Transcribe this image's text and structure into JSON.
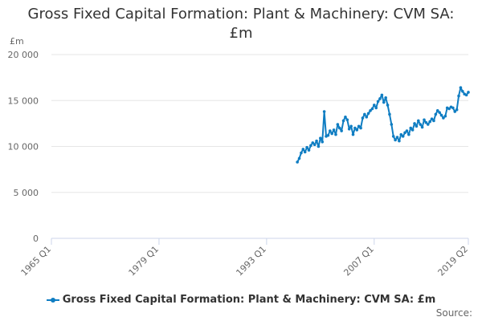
{
  "chart_data": {
    "type": "line",
    "title_line1": "Gross Fixed Capital Formation: Plant & Machinery: CVM SA:",
    "title_line2": "£m",
    "ylabel": "£m",
    "ylim": [
      0,
      20000
    ],
    "y_ticks": [
      "0",
      "5 000",
      "10 000",
      "15 000",
      "20 000"
    ],
    "x_ticks": [
      "1965 Q1",
      "1979 Q1",
      "1993 Q1",
      "2007 Q1",
      "2019 Q2"
    ],
    "grid": true,
    "legend_position": "bottom",
    "series": [
      {
        "name": "Gross Fixed Capital Formation: Plant & Machinery: CVM SA: £m",
        "color": "#0f7dc2",
        "x": [
          "1997 Q1",
          "1997 Q2",
          "1997 Q3",
          "1997 Q4",
          "1998 Q1",
          "1998 Q2",
          "1998 Q3",
          "1998 Q4",
          "1999 Q1",
          "1999 Q2",
          "1999 Q3",
          "1999 Q4",
          "2000 Q1",
          "2000 Q2",
          "2000 Q3",
          "2000 Q4",
          "2001 Q1",
          "2001 Q2",
          "2001 Q3",
          "2001 Q4",
          "2002 Q1",
          "2002 Q2",
          "2002 Q3",
          "2002 Q4",
          "2003 Q1",
          "2003 Q2",
          "2003 Q3",
          "2003 Q4",
          "2004 Q1",
          "2004 Q2",
          "2004 Q3",
          "2004 Q4",
          "2005 Q1",
          "2005 Q2",
          "2005 Q3",
          "2005 Q4",
          "2006 Q1",
          "2006 Q2",
          "2006 Q3",
          "2006 Q4",
          "2007 Q1",
          "2007 Q2",
          "2007 Q3",
          "2007 Q4",
          "2008 Q1",
          "2008 Q2",
          "2008 Q3",
          "2008 Q4",
          "2009 Q1",
          "2009 Q2",
          "2009 Q3",
          "2009 Q4",
          "2010 Q1",
          "2010 Q2",
          "2010 Q3",
          "2010 Q4",
          "2011 Q1",
          "2011 Q2",
          "2011 Q3",
          "2011 Q4",
          "2012 Q1",
          "2012 Q2",
          "2012 Q3",
          "2012 Q4",
          "2013 Q1",
          "2013 Q2",
          "2013 Q3",
          "2013 Q4",
          "2014 Q1",
          "2014 Q2",
          "2014 Q3",
          "2014 Q4",
          "2015 Q1",
          "2015 Q2",
          "2015 Q3",
          "2015 Q4",
          "2016 Q1",
          "2016 Q2",
          "2016 Q3",
          "2016 Q4",
          "2017 Q1",
          "2017 Q2",
          "2017 Q3",
          "2017 Q4",
          "2018 Q1",
          "2018 Q2",
          "2018 Q3",
          "2018 Q4",
          "2019 Q1",
          "2019 Q2"
        ],
        "values": [
          8300,
          8700,
          9300,
          9700,
          9400,
          9900,
          9600,
          10100,
          10400,
          10200,
          10600,
          10000,
          10900,
          10500,
          13800,
          11100,
          11200,
          11700,
          11400,
          11800,
          11300,
          12400,
          12000,
          11700,
          12800,
          13200,
          12900,
          11900,
          12200,
          11300,
          12000,
          11800,
          12200,
          12000,
          13100,
          13500,
          13200,
          13600,
          13900,
          14100,
          14500,
          14200,
          14900,
          15200,
          15600,
          14800,
          15300,
          14500,
          13500,
          12400,
          11100,
          10700,
          11000,
          10600,
          11300,
          11100,
          11500,
          11700,
          11300,
          12000,
          11800,
          12500,
          12200,
          12800,
          12400,
          12100,
          12900,
          12600,
          12400,
          12700,
          13000,
          12800,
          13500,
          13900,
          13700,
          13400,
          13100,
          13300,
          14200,
          14100,
          14300,
          14200,
          13800,
          14000,
          15500,
          16400,
          16000,
          15700,
          15600,
          15900
        ]
      }
    ]
  },
  "legend": {
    "label": "Gross Fixed Capital Formation: Plant & Machinery: CVM SA: £m"
  },
  "footer": {
    "source_label": "Source:"
  }
}
